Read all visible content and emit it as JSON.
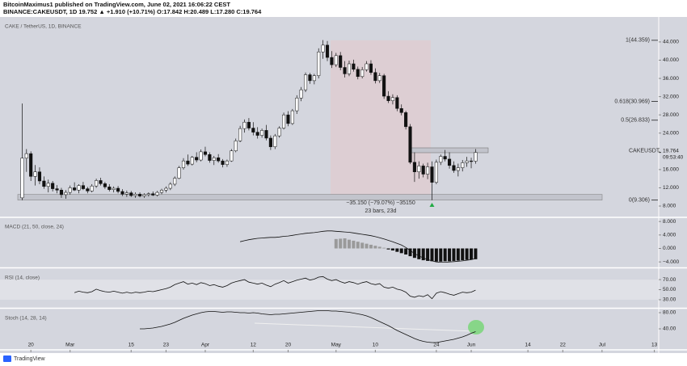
{
  "header": {
    "author_line": "BitcoinMaximus1 published on TradingView.com, June 02, 2021 16:06:22 CEST",
    "symbol_line": "BINANCE:CAKEUSDT, 1D  19.752 ▲ +1.910 (+10.71%) O:17.842 H:20.489 L:17.280 C:19.764"
  },
  "footer": "TradingView",
  "chart_data": [
    {
      "type": "candlestick",
      "title": "CAKE / TetherUS, 1D, BINANCE",
      "up_color": "#ffffff",
      "down_color": "#111111",
      "ohlc": [
        [
          9.8,
          30.5,
          9.3,
          18.5
        ],
        [
          18.5,
          20.5,
          15.5,
          19.5
        ],
        [
          19.5,
          20,
          13.5,
          14.5
        ],
        [
          14.5,
          17,
          12.5,
          15.5
        ],
        [
          15.5,
          16.5,
          12.8,
          13.5
        ],
        [
          13.5,
          14.5,
          11.8,
          12.3
        ],
        [
          12.3,
          13.8,
          11,
          13
        ],
        [
          13,
          13.5,
          11.2,
          11.8
        ],
        [
          11.8,
          12.6,
          10.8,
          11.5
        ],
        [
          11.5,
          12,
          9.8,
          10.5
        ],
        [
          10.5,
          11.5,
          9.6,
          11
        ],
        [
          11,
          12.5,
          10.5,
          12
        ],
        [
          12,
          13.2,
          11.3,
          11.5
        ],
        [
          11.5,
          12.8,
          10.8,
          12.5
        ],
        [
          12.5,
          13.3,
          11.5,
          11.8
        ],
        [
          11.8,
          12.2,
          10.8,
          11.3
        ],
        [
          11.3,
          12.8,
          11,
          12.4
        ],
        [
          12.4,
          14,
          12,
          13.6
        ],
        [
          13.6,
          14.2,
          12.5,
          12.9
        ],
        [
          12.9,
          13.3,
          11.8,
          12.2
        ],
        [
          12.2,
          12.8,
          11.2,
          11.6
        ],
        [
          11.6,
          12.3,
          11,
          11.9
        ],
        [
          11.9,
          12.4,
          10.8,
          11.2
        ],
        [
          11.2,
          11.7,
          10.2,
          10.6
        ],
        [
          10.6,
          11.4,
          10,
          10.9
        ],
        [
          10.9,
          11.3,
          10,
          10.3
        ],
        [
          10.3,
          11,
          9.8,
          10.6
        ],
        [
          10.6,
          11,
          9.9,
          10.2
        ],
        [
          10.2,
          10.8,
          9.8,
          10.5
        ],
        [
          10.5,
          11,
          10.1,
          10.7
        ],
        [
          10.7,
          11.2,
          10.2,
          10.4
        ],
        [
          10.4,
          11.3,
          10.1,
          11
        ],
        [
          11,
          11.8,
          10.6,
          11.5
        ],
        [
          11.5,
          12.3,
          11,
          11.9
        ],
        [
          11.9,
          13.2,
          11.5,
          12.8
        ],
        [
          12.8,
          14.5,
          12.4,
          14.1
        ],
        [
          14.1,
          16.8,
          13.9,
          16.4
        ],
        [
          16.4,
          18.5,
          16,
          17.9
        ],
        [
          17.9,
          19.3,
          16.8,
          17.2
        ],
        [
          17.2,
          19,
          16.9,
          18.7
        ],
        [
          18.7,
          19.8,
          17.6,
          18.1
        ],
        [
          18.1,
          20.4,
          17.8,
          19.9
        ],
        [
          19.9,
          21,
          18.9,
          19.3
        ],
        [
          19.3,
          19.8,
          17.5,
          18
        ],
        [
          18,
          19,
          17,
          18.6
        ],
        [
          18.6,
          19.4,
          17.5,
          17.9
        ],
        [
          17.9,
          18.3,
          16.5,
          17.1
        ],
        [
          17.1,
          18.2,
          16.6,
          17.9
        ],
        [
          17.9,
          20.5,
          17.7,
          20.1
        ],
        [
          20.1,
          22.8,
          19.8,
          22.3
        ],
        [
          22.3,
          25.6,
          22,
          25
        ],
        [
          25,
          27,
          24.1,
          26.4
        ],
        [
          26.4,
          27.3,
          24.6,
          25.1
        ],
        [
          25.1,
          26.4,
          23.5,
          24.2
        ],
        [
          24.2,
          25.3,
          22.8,
          23.5
        ],
        [
          23.5,
          25,
          23,
          24.6
        ],
        [
          24.6,
          25.8,
          22.4,
          22.9
        ],
        [
          22.9,
          23.5,
          20.3,
          21
        ],
        [
          21,
          23.8,
          20.5,
          23.4
        ],
        [
          23.4,
          25.5,
          23,
          25.1
        ],
        [
          25.1,
          28.5,
          24.8,
          28
        ],
        [
          28,
          28.8,
          25.5,
          26.1
        ],
        [
          26.1,
          29.3,
          25.8,
          28.9
        ],
        [
          28.9,
          32.3,
          28.2,
          31.7
        ],
        [
          31.7,
          34.1,
          31,
          33.5
        ],
        [
          33.5,
          37.3,
          33,
          36.8
        ],
        [
          36.8,
          37.2,
          34.8,
          35.5
        ],
        [
          35.5,
          37,
          34.7,
          36.6
        ],
        [
          36.6,
          42.6,
          36,
          41.8
        ],
        [
          41.8,
          44.4,
          40.3,
          43.3
        ],
        [
          43.3,
          44.2,
          39.8,
          40.6
        ],
        [
          40.6,
          42,
          38.3,
          39
        ],
        [
          39,
          41.6,
          38.5,
          41
        ],
        [
          41,
          41.8,
          37.8,
          38.4
        ],
        [
          38.4,
          39.8,
          36.2,
          37
        ],
        [
          37,
          39.9,
          36.5,
          39.2
        ],
        [
          39.2,
          40.1,
          37.5,
          38
        ],
        [
          38,
          38.6,
          35.8,
          36.4
        ],
        [
          36.4,
          38.5,
          36,
          37.9
        ],
        [
          37.9,
          39.8,
          37.5,
          39.2
        ],
        [
          39.2,
          40,
          36.8,
          37.3
        ],
        [
          37.3,
          38.2,
          34.9,
          35.5
        ],
        [
          35.5,
          37.2,
          35,
          36.6
        ],
        [
          36.6,
          37,
          31.5,
          32.1
        ],
        [
          32.1,
          33.2,
          30.6,
          31.1
        ],
        [
          31.1,
          32.5,
          30.3,
          31.8
        ],
        [
          31.8,
          32.3,
          28.8,
          29.4
        ],
        [
          29.4,
          30.3,
          27.9,
          28.5
        ],
        [
          28.5,
          28.9,
          24.8,
          25.4
        ],
        [
          25.4,
          26,
          17.2,
          17.6
        ],
        [
          17.6,
          19.8,
          13.3,
          15.5
        ],
        [
          15.5,
          17.8,
          14,
          16.8
        ],
        [
          16.8,
          17.3,
          14.3,
          15
        ],
        [
          15,
          17.5,
          13.9,
          16.6
        ],
        [
          16.6,
          17.8,
          9.3,
          13.2
        ],
        [
          13.2,
          18.2,
          12.8,
          17.6
        ],
        [
          17.6,
          19.3,
          17,
          18.9
        ],
        [
          18.9,
          20.3,
          17.8,
          18.3
        ],
        [
          18.3,
          19.8,
          16.2,
          16.9
        ],
        [
          16.9,
          17.8,
          15.3,
          15.8
        ],
        [
          15.8,
          17.3,
          14.5,
          16.4
        ],
        [
          16.4,
          18.1,
          15.6,
          17.5
        ],
        [
          17.5,
          18.8,
          16.6,
          17.9
        ],
        [
          17.9,
          18.6,
          16.3,
          17.8
        ],
        [
          17.842,
          20.489,
          17.28,
          19.764
        ]
      ],
      "xlim": [
        -1,
        146
      ],
      "xticks": [
        {
          "value": 2,
          "label": "20"
        },
        {
          "value": 11,
          "label": "Mar"
        },
        {
          "value": 25,
          "label": "15"
        },
        {
          "value": 33,
          "label": "23"
        },
        {
          "value": 42,
          "label": "Apr"
        },
        {
          "value": 53,
          "label": "12"
        },
        {
          "value": 61,
          "label": "20"
        },
        {
          "value": 72,
          "label": "May"
        },
        {
          "value": 81,
          "label": "10"
        },
        {
          "value": 95,
          "label": "24"
        },
        {
          "value": 103,
          "label": "Jun"
        },
        {
          "value": 116,
          "label": "14"
        },
        {
          "value": 124,
          "label": "22"
        },
        {
          "value": 133,
          "label": "Jul"
        },
        {
          "value": 145,
          "label": "13"
        }
      ],
      "ylim": [
        5.7,
        49.3
      ],
      "yticks": [
        {
          "value": 8,
          "label": "8.000"
        },
        {
          "value": 12,
          "label": "12.000"
        },
        {
          "value": 16,
          "label": "16.000"
        },
        {
          "value": 20,
          "label": "20.000"
        },
        {
          "value": 24,
          "label": "24.000"
        },
        {
          "value": 28,
          "label": "28.000"
        },
        {
          "value": 32,
          "label": "32.000"
        },
        {
          "value": 36,
          "label": "36.000"
        },
        {
          "value": 40,
          "label": "40.000"
        },
        {
          "value": 44,
          "label": "44.000"
        }
      ],
      "symbol_label": "CAKEUSDT",
      "countdown": "09:53:40",
      "fib": [
        {
          "value": 44.359,
          "label": "1(44.359)"
        },
        {
          "value": 30.969,
          "label": "0.618(30.969)"
        },
        {
          "value": 26.833,
          "label": "0.5(26.833)"
        },
        {
          "value": 9.306,
          "label": "0(9.306)"
        }
      ],
      "measure": {
        "change": "−35.150 (−79.07%) −35150",
        "span": "23 bars, 23d"
      }
    },
    {
      "type": "macd",
      "title": "MACD (21, 50, close, 24)",
      "color": "#111111",
      "ylim": [
        -5.4,
        9
      ],
      "yticks": [
        {
          "value": 8,
          "label": "8.000"
        },
        {
          "value": 4,
          "label": "4.000"
        },
        {
          "value": 0,
          "label": "0.000"
        },
        {
          "value": -4,
          "label": "−4.000"
        }
      ],
      "values": [
        null,
        null,
        null,
        null,
        null,
        null,
        null,
        null,
        null,
        null,
        null,
        null,
        null,
        null,
        null,
        null,
        null,
        null,
        null,
        null,
        null,
        null,
        null,
        null,
        null,
        null,
        null,
        null,
        null,
        null,
        null,
        null,
        null,
        null,
        null,
        null,
        null,
        null,
        null,
        null,
        null,
        null,
        null,
        null,
        null,
        null,
        null,
        null,
        null,
        null,
        2.0,
        2.3,
        2.6,
        2.8,
        3.0,
        3.1,
        3.2,
        3.3,
        3.3,
        3.4,
        3.6,
        3.7,
        3.9,
        4.1,
        4.3,
        4.5,
        4.6,
        4.7,
        4.9,
        5.1,
        5.2,
        5.2,
        5.1,
        5.0,
        4.9,
        4.8,
        4.6,
        4.4,
        4.2,
        4.0,
        3.8,
        3.5,
        3.2,
        2.8,
        2.4,
        2.0,
        1.5,
        1.0,
        0.3,
        -0.6,
        -1.5,
        -2.2,
        -2.8,
        -3.3,
        -3.7,
        -4.0,
        -4.1,
        -4.1,
        -4.0,
        -3.9,
        -3.8,
        -3.7,
        -3.5,
        -3.3,
        -3.0
      ],
      "histogram": [
        null,
        null,
        null,
        null,
        null,
        null,
        null,
        null,
        null,
        null,
        null,
        null,
        null,
        null,
        null,
        null,
        null,
        null,
        null,
        null,
        null,
        null,
        null,
        null,
        null,
        null,
        null,
        null,
        null,
        null,
        null,
        null,
        null,
        null,
        null,
        null,
        null,
        null,
        null,
        null,
        null,
        null,
        null,
        null,
        null,
        null,
        null,
        null,
        null,
        null,
        null,
        null,
        null,
        null,
        null,
        null,
        null,
        null,
        null,
        null,
        null,
        null,
        null,
        null,
        null,
        null,
        null,
        null,
        null,
        null,
        null,
        null,
        2.8,
        2.9,
        3.0,
        2.6,
        2.3,
        2.0,
        1.7,
        1.4,
        1.1,
        0.8,
        0.5,
        0.2,
        -0.3,
        -0.6,
        -1.0,
        -1.4,
        -1.8,
        -2.3,
        -2.8,
        -3.2,
        -3.5,
        -3.7,
        -3.8,
        -3.9,
        -3.9,
        -3.8,
        -3.8,
        -3.7,
        -3.6,
        -3.5,
        -3.4,
        -3.3,
        -3.2
      ],
      "hist_up_color": "#9a9a9a",
      "hist_down_color": "#111111"
    },
    {
      "type": "line",
      "title": "RSI (14, close)",
      "color": "#111111",
      "band_color": "#e0e1e7",
      "ylim": [
        15.5,
        91
      ],
      "yticks": [
        {
          "value": 70,
          "label": "70.00"
        },
        {
          "value": 50,
          "label": "50.00"
        },
        {
          "value": 30,
          "label": "30.00"
        }
      ],
      "values": [
        null,
        null,
        null,
        null,
        null,
        null,
        null,
        null,
        null,
        null,
        null,
        null,
        44,
        47,
        45,
        44,
        46,
        51,
        48,
        46,
        45,
        47,
        45,
        43,
        45,
        43,
        45,
        44,
        45,
        47,
        46,
        48,
        50,
        52,
        55,
        60,
        63,
        66,
        61,
        63,
        60,
        64,
        62,
        58,
        60,
        57,
        55,
        58,
        63,
        66,
        68,
        70,
        65,
        63,
        61,
        63,
        59,
        56,
        61,
        64,
        68,
        63,
        66,
        69,
        71,
        73,
        69,
        71,
        75,
        76,
        71,
        68,
        70,
        66,
        63,
        66,
        64,
        61,
        64,
        66,
        62,
        60,
        62,
        55,
        53,
        55,
        51,
        49,
        45,
        37,
        35,
        38,
        36,
        40,
        32,
        43,
        46,
        44,
        41,
        39,
        42,
        45,
        44,
        45,
        49
      ]
    },
    {
      "type": "line",
      "title": "Stoch (14, 28, 14)",
      "color": "#111111",
      "ylim": [
        -10,
        88
      ],
      "yticks": [
        {
          "value": 80,
          "label": "80.00"
        },
        {
          "value": 40,
          "label": "40.00"
        }
      ],
      "values": [
        null,
        null,
        null,
        null,
        null,
        null,
        null,
        null,
        null,
        null,
        null,
        null,
        null,
        null,
        null,
        null,
        null,
        null,
        null,
        null,
        null,
        null,
        null,
        null,
        null,
        null,
        null,
        40,
        40,
        41,
        42,
        44,
        46,
        49,
        52,
        56,
        61,
        66,
        70,
        74,
        77,
        80,
        82,
        83,
        83,
        82,
        81,
        82,
        82,
        81,
        80,
        80,
        79,
        80,
        79,
        77,
        76,
        75,
        76,
        76,
        77,
        78,
        79,
        80,
        81,
        82,
        83,
        84,
        85,
        85,
        85,
        84,
        84,
        83,
        82,
        81,
        79,
        77,
        75,
        72,
        68,
        63,
        58,
        53,
        48,
        42,
        36,
        31,
        26,
        21,
        16,
        12,
        9,
        7,
        6,
        6,
        8,
        10,
        12,
        14,
        17,
        20,
        24,
        29,
        33
      ]
    }
  ]
}
